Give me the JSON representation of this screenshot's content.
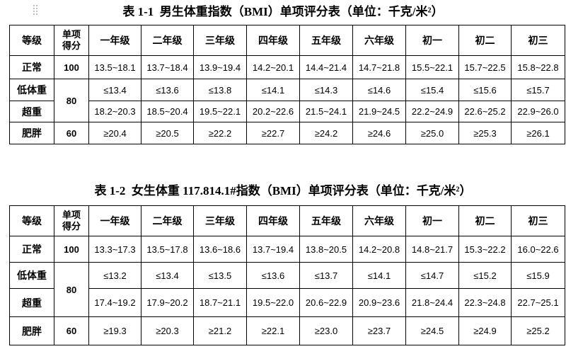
{
  "tables": [
    {
      "title": "表 1-1  男生体重指数（BMI）单项评分表（单位：千克/米²）",
      "header": {
        "level": "等级",
        "score": [
          "单项",
          "得分"
        ],
        "grades": [
          "一年级",
          "二年级",
          "三年级",
          "四年级",
          "五年级",
          "六年级",
          "初一",
          "初二",
          "初三"
        ]
      },
      "rows": [
        {
          "level": "正常",
          "score": "100",
          "cells": [
            "13.5~18.1",
            "13.7~18.4",
            "13.9~19.4",
            "14.2~20.1",
            "14.4~21.4",
            "14.7~21.8",
            "15.5~22.1",
            "15.7~22.5",
            "15.8~22.8"
          ]
        },
        {
          "level": "低体重",
          "score": "80",
          "cells": [
            "≤13.4",
            "≤13.6",
            "≤13.8",
            "≤14.1",
            "≤14.3",
            "≤14.6",
            "≤15.4",
            "≤15.6",
            "≤15.7"
          ]
        },
        {
          "level": "超重",
          "cells": [
            "18.2~20.3",
            "18.5~20.4",
            "19.5~22.1",
            "20.2~22.6",
            "21.5~24.1",
            "21.9~24.5",
            "22.2~24.9",
            "22.6~25.2",
            "22.9~26.0"
          ]
        },
        {
          "level": "肥胖",
          "score": "60",
          "cells": [
            "≥20.4",
            "≥20.5",
            "≥22.2",
            "≥22.7",
            "≥24.2",
            "≥24.6",
            "≥25.0",
            "≥25.3",
            "≥26.1"
          ]
        }
      ]
    },
    {
      "title": "表 1-2  女生体重 117.814.1#指数（BMI）单项评分表（单位：千克/米²）",
      "header": {
        "level": "等级",
        "score": [
          "单项",
          "得分"
        ],
        "grades": [
          "一年级",
          "二年级",
          "三年级",
          "四年级",
          "五年级",
          "六年级",
          "初一",
          "初二",
          "初三"
        ]
      },
      "rows": [
        {
          "level": "正常",
          "score": "100",
          "cells": [
            "13.3~17.3",
            "13.5~17.8",
            "13.6~18.6",
            "13.7~19.4",
            "13.8~20.5",
            "14.2~20.8",
            "14.8~21.7",
            "15.3~22.2",
            "16.0~22.6"
          ]
        },
        {
          "level": "低体重",
          "score": "80",
          "cells": [
            "≤13.2",
            "≤13.4",
            "≤13.5",
            "≤13.6",
            "≤13.7",
            "≤14.1",
            "≤14.7",
            "≤15.2",
            "≤15.9"
          ]
        },
        {
          "level": "超重",
          "cells": [
            "17.4~19.2",
            "17.9~20.2",
            "18.7~21.1",
            "19.5~22.0",
            "20.6~22.9",
            "20.9~23.6",
            "21.8~24.4",
            "22.3~24.8",
            "22.7~25.1"
          ]
        },
        {
          "level": "肥胖",
          "score": "60",
          "cells": [
            "≥19.3",
            "≥20.3",
            "≥21.2",
            "≥22.1",
            "≥23.0",
            "≥23.7",
            "≥24.5",
            "≥24.9",
            "≥25.2"
          ]
        }
      ]
    }
  ]
}
